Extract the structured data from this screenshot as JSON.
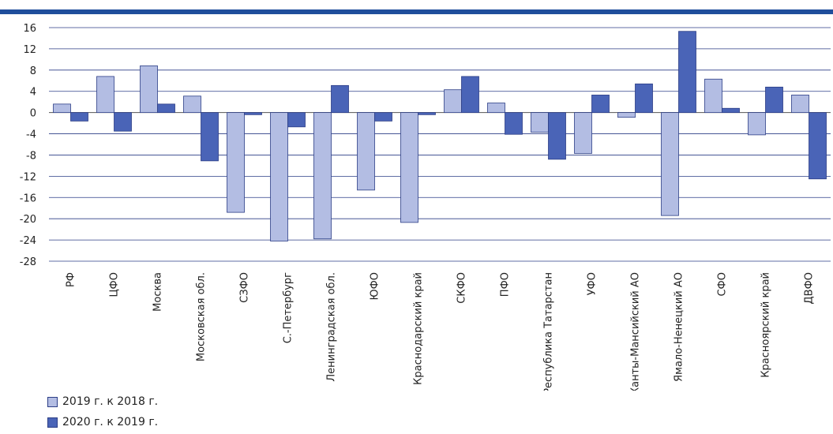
{
  "chart_data": {
    "type": "bar",
    "categories": [
      "РФ",
      "ЦФО",
      "Москва",
      "Московская обл.",
      "СЗФО",
      "С.-Петербург",
      "Ленинградская обл.",
      "ЮФО",
      "Краснодарский край",
      "СКФО",
      "ПФО",
      "Республика Татарстан",
      "УФО",
      "Ханты-Мансийский АО",
      "Ямало-Ненецкий АО",
      "СФО",
      "Красноярский край",
      "ДВФО"
    ],
    "series": [
      {
        "name": "2019 г. к 2018 г.",
        "color": "#b3bde3",
        "values": [
          1.6,
          6.8,
          8.8,
          3.1,
          -18.8,
          -24.2,
          -23.8,
          -14.6,
          -20.7,
          4.3,
          1.8,
          -3.7,
          -7.7,
          -0.9,
          -19.4,
          6.3,
          -4.2,
          3.3
        ]
      },
      {
        "name": "2020 г. к 2019 г.",
        "color": "#4a64b7",
        "values": [
          -1.6,
          -3.5,
          1.6,
          -9.1,
          -0.4,
          -2.7,
          5.1,
          -1.6,
          -0.4,
          6.8,
          -4.1,
          -8.8,
          3.3,
          5.4,
          15.3,
          0.8,
          4.8,
          -12.5
        ]
      }
    ],
    "yticks": [
      16,
      12,
      8,
      4,
      0,
      -4,
      -8,
      -12,
      -16,
      -20,
      -24,
      -28
    ],
    "ylim": [
      -28,
      16
    ],
    "grid": true,
    "legend_position": "bottom-left"
  }
}
